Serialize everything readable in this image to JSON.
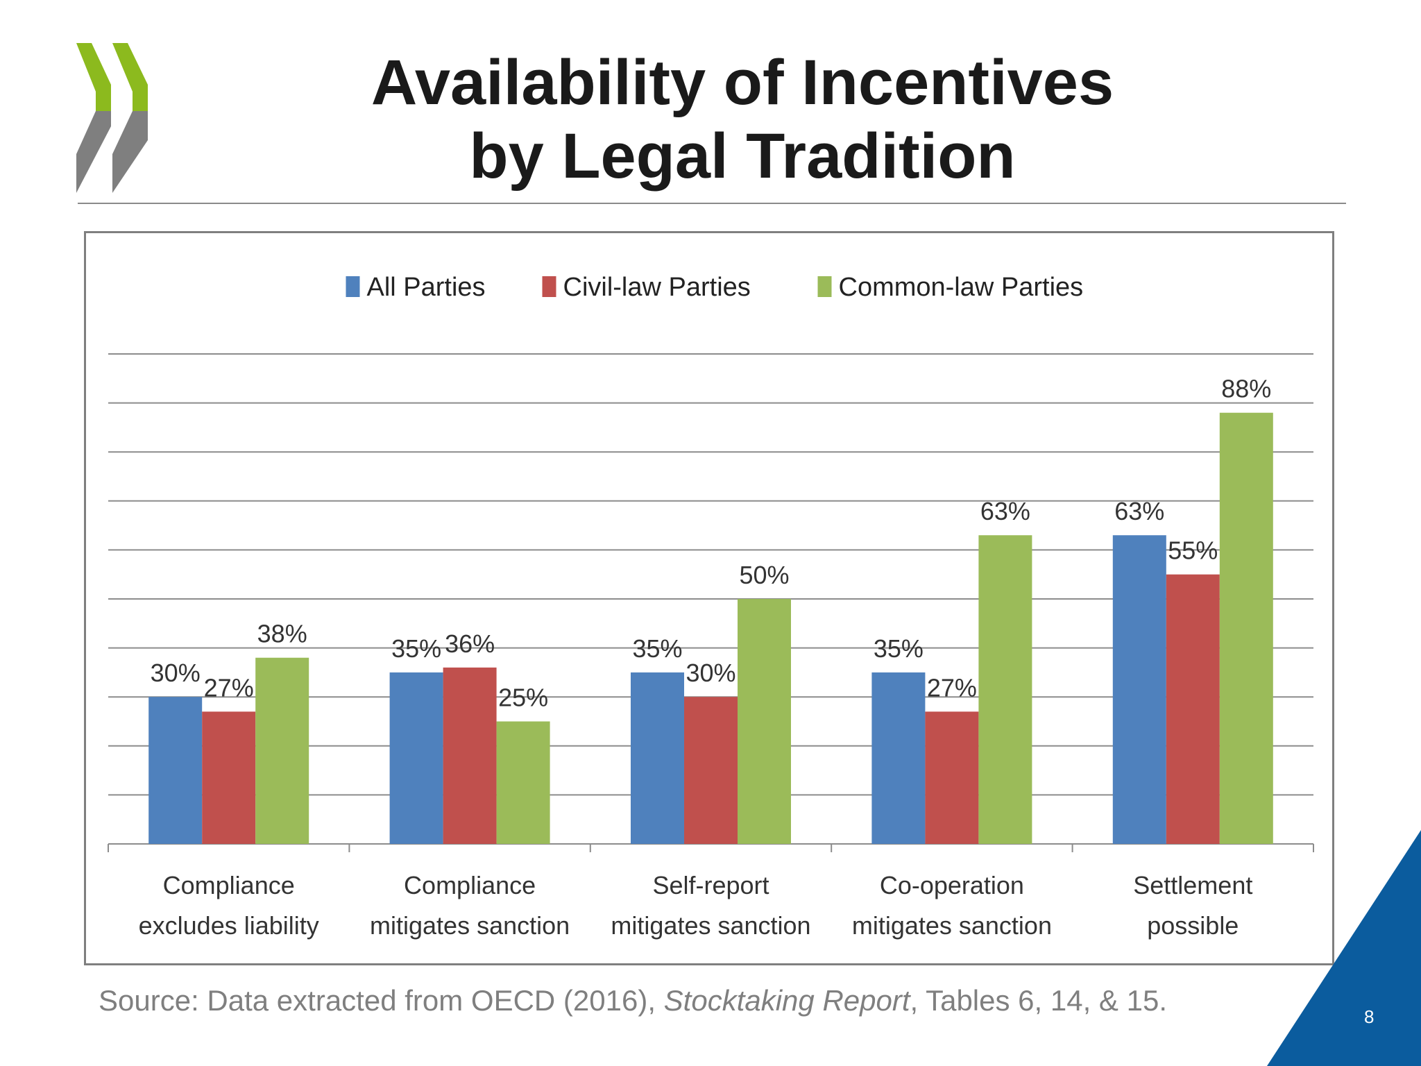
{
  "slide": {
    "title_line1": "Availability of Incentives",
    "title_line2": "by Legal Tradition",
    "source_prefix": "Source: Data extracted from OECD (2016), ",
    "source_italic": "Stocktaking Report",
    "source_suffix": ", Tables 6, 14, & 15.",
    "page_number": "8",
    "brand_colors": {
      "green": "#8CBA1E",
      "gray": "#7F7F7F",
      "blue": "#0B5C9E"
    }
  },
  "chart_data": {
    "type": "bar",
    "categories": [
      [
        "Compliance",
        "excludes liability"
      ],
      [
        "Compliance",
        "mitigates sanction"
      ],
      [
        "Self-report",
        "mitigates sanction"
      ],
      [
        "Co-operation",
        "mitigates sanction"
      ],
      [
        "Settlement",
        "possible"
      ]
    ],
    "series": [
      {
        "name": "All Parties",
        "color": "#4F81BD",
        "values": [
          30,
          35,
          35,
          35,
          63
        ],
        "labels": [
          "30%",
          "35%",
          "35%",
          "35%",
          "63%"
        ]
      },
      {
        "name": "Civil-law Parties",
        "color": "#C0504D",
        "values": [
          27,
          36,
          30,
          27,
          55
        ],
        "labels": [
          "27%",
          "36%",
          "30%",
          "27%",
          "55%"
        ]
      },
      {
        "name": "Common-law Parties",
        "color": "#9BBB59",
        "values": [
          38,
          25,
          50,
          63,
          88
        ],
        "labels": [
          "38%",
          "25%",
          "50%",
          "63%",
          "88%"
        ]
      }
    ],
    "ylim": [
      0,
      100
    ],
    "grid": true,
    "legend_position": "top"
  }
}
